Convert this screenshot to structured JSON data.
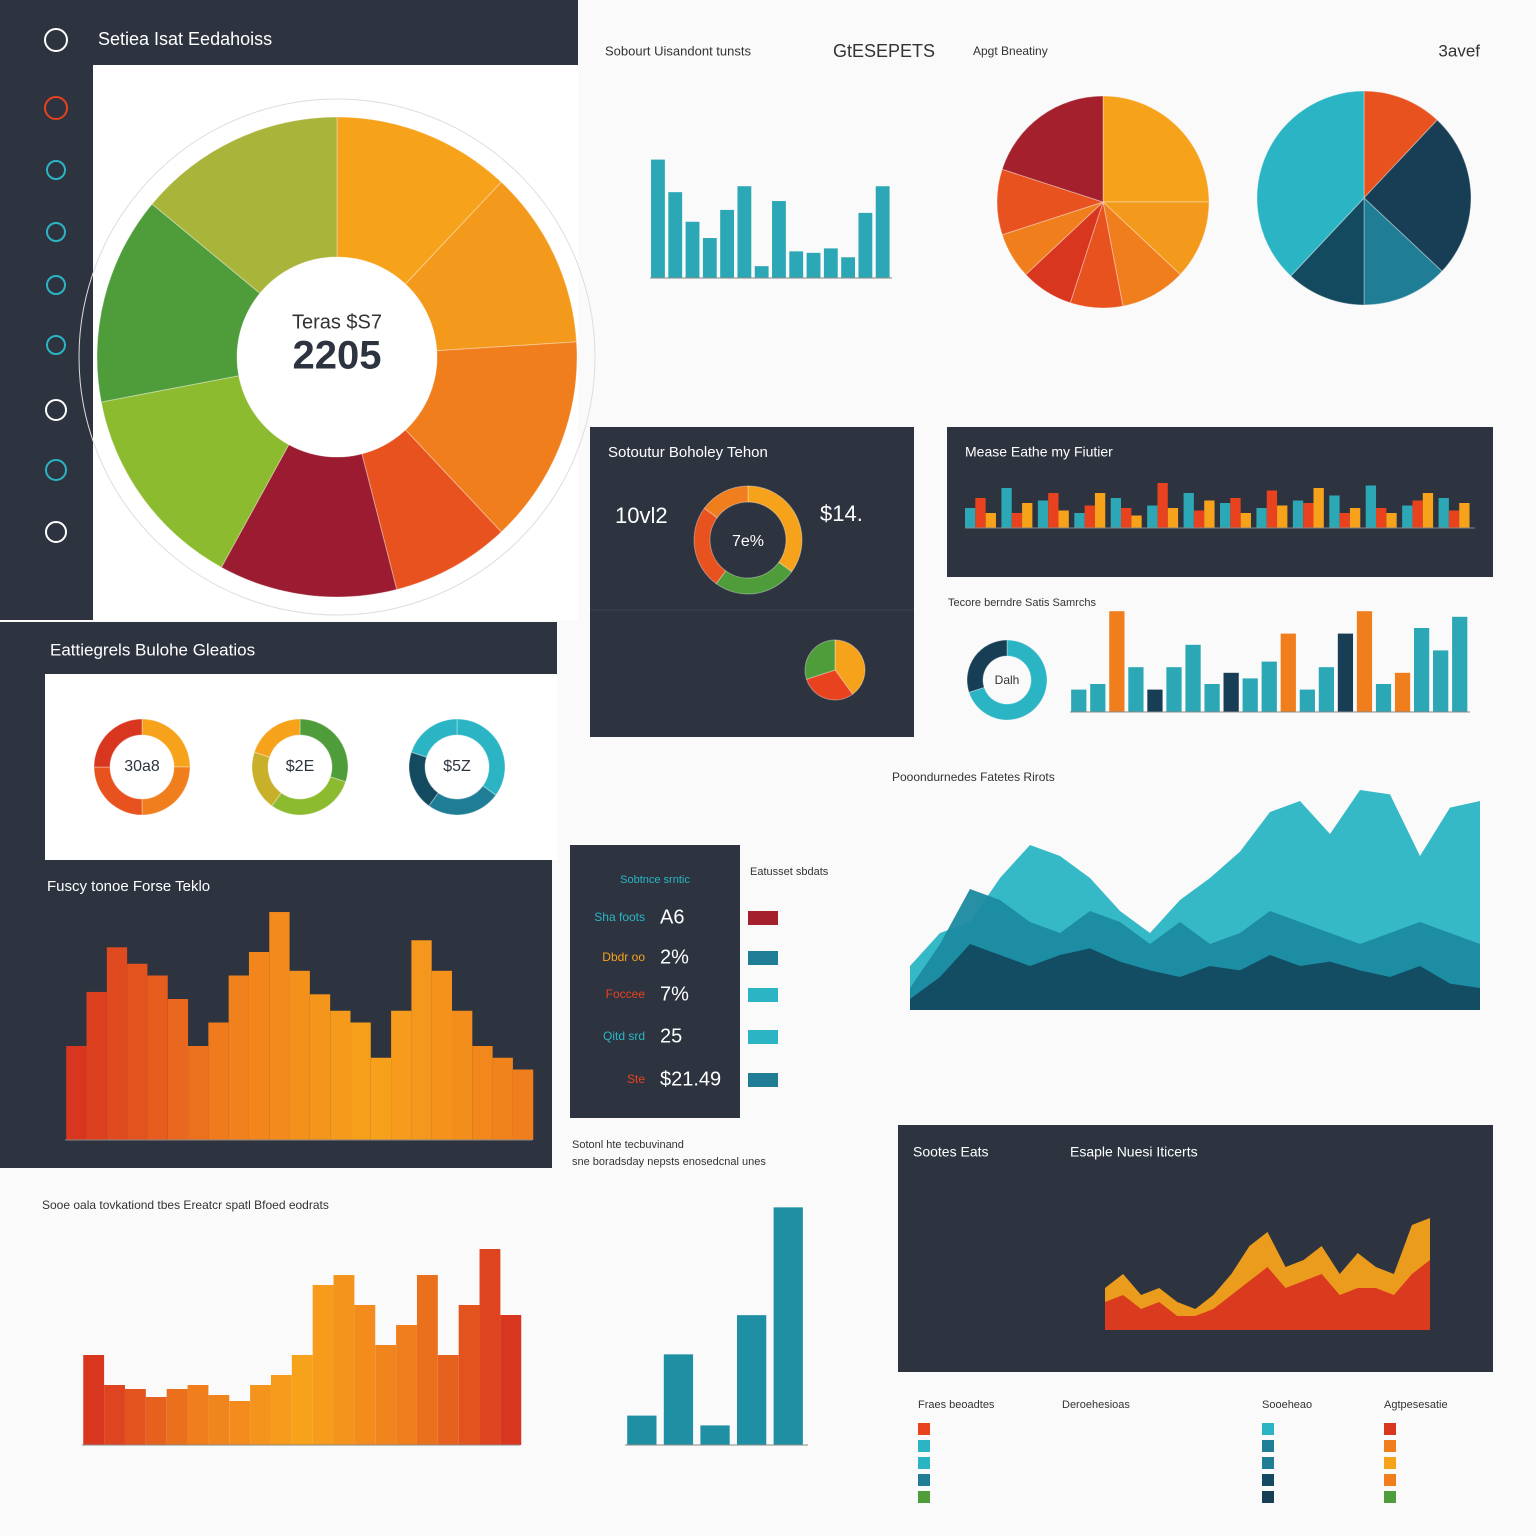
{
  "header": {
    "title": "Setiea Isat Eedahoiss"
  },
  "chart_data": [
    {
      "type": "donut",
      "center_label": "Teras $S7",
      "center_value": "2205",
      "values": [
        12,
        12,
        14,
        8,
        12,
        14,
        14,
        14
      ],
      "colors": [
        "#f7a21b",
        "#f39a1c",
        "#f07e1d",
        "#e8521f",
        "#9b1b30",
        "#8dbb2f",
        "#4f9d3a",
        "#a9b53a"
      ]
    },
    {
      "type": "bar",
      "title": "Sobourt Uisandont tunsts",
      "badge": "GtESEPETS",
      "color": "#2ba7b5",
      "values": [
        80,
        58,
        38,
        27,
        46,
        62,
        8,
        52,
        18,
        17,
        20,
        14,
        44,
        62
      ],
      "ylim": [
        0,
        100
      ]
    },
    {
      "type": "pie",
      "title": "Apgt Bneatiny",
      "values": [
        25,
        12,
        10,
        8,
        8,
        7,
        10,
        20
      ],
      "colors": [
        "#f7a21b",
        "#f39a1c",
        "#f07e1d",
        "#e8521f",
        "#d9361f",
        "#f07e1d",
        "#e8521f",
        "#a3202c"
      ]
    },
    {
      "type": "pie",
      "title": "3avef",
      "values": [
        12,
        25,
        13,
        12,
        38
      ],
      "colors": [
        "#e8521f",
        "#173e55",
        "#1f7e96",
        "#134a60",
        "#2bb5c4"
      ]
    },
    {
      "type": "donut",
      "title": "Sotoutur Boholey Tehon",
      "left_value": "10vl2",
      "center_value": "7e%",
      "right_value": "$14.",
      "values": [
        35,
        25,
        25,
        15
      ],
      "colors": [
        "#f7a21b",
        "#4f9d3a",
        "#e8521f",
        "#f07e1d"
      ]
    },
    {
      "type": "bar",
      "title": "Mease Eathe my Fiutier",
      "ylim": [
        0,
        100
      ],
      "series": [
        {
          "color": "#2ba7b5",
          "values": [
            40,
            80,
            55,
            30,
            60,
            45,
            70,
            50,
            40,
            55,
            65,
            85,
            45,
            60
          ]
        },
        {
          "color": "#e8421f",
          "values": [
            60,
            30,
            70,
            45,
            40,
            90,
            35,
            60,
            75,
            50,
            30,
            40,
            55,
            35
          ]
        },
        {
          "color": "#f7a21b",
          "values": [
            30,
            50,
            35,
            70,
            25,
            40,
            55,
            30,
            45,
            80,
            40,
            30,
            70,
            50
          ]
        }
      ]
    },
    {
      "type": "donut",
      "center_value": "Dalh",
      "values": [
        70,
        30
      ],
      "colors": [
        "#2bb5c4",
        "#173e55"
      ]
    },
    {
      "type": "bar",
      "title": "Tecore berndre Satis Samrchs",
      "ylim": [
        0,
        100
      ],
      "values": [
        20,
        25,
        90,
        40,
        20,
        40,
        60,
        25,
        35,
        30,
        45,
        70,
        20,
        40,
        70,
        90,
        25,
        35,
        75,
        55,
        85
      ],
      "colors": [
        "#2ba7b5",
        "#2ba7b5",
        "#f07e1d",
        "#2ba7b5",
        "#173e55",
        "#2ba7b5",
        "#2ba7b5",
        "#2ba7b5",
        "#173e55",
        "#2ba7b5",
        "#2ba7b5",
        "#f07e1d",
        "#2ba7b5",
        "#2ba7b5",
        "#173e55",
        "#f07e1d",
        "#2ba7b5",
        "#f07e1d",
        "#2ba7b5",
        "#2ba7b5",
        "#2ba7b5"
      ]
    },
    {
      "type": "gauge",
      "title": "Eattiegrels Bulohe Gleatios",
      "items": [
        {
          "label": "30a8",
          "values": [
            25,
            25,
            25,
            25
          ],
          "colors": [
            "#f7a21b",
            "#f07e1d",
            "#e8521f",
            "#d9361f"
          ]
        },
        {
          "label": "$2E",
          "values": [
            30,
            30,
            20,
            20
          ],
          "colors": [
            "#4f9d3a",
            "#8dbb2f",
            "#c9b02a",
            "#f7a21b"
          ]
        },
        {
          "label": "$5Z",
          "values": [
            35,
            25,
            20,
            20
          ],
          "colors": [
            "#2bb5c4",
            "#1f7e96",
            "#134a60",
            "#2bb5c4"
          ]
        }
      ]
    },
    {
      "type": "bar",
      "title": "Fuscy tonoe Forse Teklo",
      "ylim": [
        0,
        100
      ],
      "values": [
        40,
        63,
        82,
        75,
        70,
        60,
        40,
        50,
        70,
        80,
        97,
        72,
        62,
        55,
        50,
        35,
        55,
        85,
        72,
        55,
        40,
        35,
        30
      ],
      "gradient": [
        "#d9361f",
        "#f07e1d",
        "#f7a21b",
        "#f07e1d"
      ]
    },
    {
      "type": "kpi",
      "title": "Sobtnce srntic",
      "side_title": "Eatusset sbdats",
      "rows": [
        {
          "label": "Sha foots",
          "value": "A6",
          "color": "#2bb5c4",
          "tag_color": "#a3202c"
        },
        {
          "label": "Dbdr oo",
          "value": "2%",
          "color": "#f7a21b",
          "tag_color": "#1f7e96"
        },
        {
          "label": "Foccee",
          "value": "7%",
          "color": "#e8421f",
          "tag_color": "#2bb5c4"
        },
        {
          "label": "Qitd srd",
          "value": "25",
          "color": "#2bb5c4",
          "tag_color": "#2bb5c4"
        },
        {
          "label": "Ste",
          "value": "$21.49",
          "color": "#e8421f",
          "tag_color": "#1f7e96"
        }
      ]
    },
    {
      "type": "area",
      "title": "Pooondurnedes Fatetes Rirots",
      "ylim": [
        0,
        100
      ],
      "series": [
        {
          "color": "#2bb5c4",
          "values": [
            20,
            35,
            40,
            60,
            75,
            70,
            60,
            45,
            35,
            50,
            60,
            72,
            90,
            95,
            80,
            100,
            98,
            70,
            92,
            95
          ]
        },
        {
          "color": "#1b8aa0",
          "values": [
            10,
            30,
            55,
            50,
            40,
            35,
            45,
            40,
            30,
            40,
            30,
            35,
            45,
            40,
            35,
            30,
            35,
            40,
            35,
            30
          ]
        },
        {
          "color": "#134a60",
          "values": [
            5,
            15,
            30,
            25,
            20,
            25,
            28,
            22,
            18,
            15,
            20,
            18,
            25,
            20,
            22,
            18,
            15,
            20,
            12,
            10
          ]
        }
      ]
    },
    {
      "type": "bar",
      "title": "Sooe oala tovkationd tbes Ereatcr spatl Bfoed eodrats",
      "ylim": [
        0,
        100
      ],
      "values": [
        45,
        30,
        28,
        24,
        28,
        30,
        25,
        22,
        30,
        35,
        45,
        80,
        85,
        70,
        50,
        60,
        85,
        45,
        70,
        98,
        65
      ],
      "gradient": [
        "#d9361f",
        "#f07e1d",
        "#f7a21b",
        "#f07e1d",
        "#d9361f"
      ]
    },
    {
      "type": "bar",
      "title": "Sotonl hte tecbuvinand",
      "subtitle": "sne boradsday nepsts enosedcnal unes",
      "ylim": [
        0,
        100
      ],
      "values": [
        12,
        37,
        8,
        53,
        97
      ],
      "color": "#1f8fa3"
    },
    {
      "type": "area",
      "title": "Sootes Eats",
      "subtitle": "Esaple Nuesi Iticerts",
      "ylim": [
        0,
        100
      ],
      "series": [
        {
          "color": "#f7a21b",
          "values": [
            30,
            40,
            25,
            30,
            20,
            15,
            25,
            40,
            60,
            70,
            45,
            50,
            60,
            40,
            55,
            45,
            40,
            75,
            80
          ]
        },
        {
          "color": "#d9361f",
          "values": [
            20,
            25,
            15,
            20,
            10,
            10,
            15,
            25,
            35,
            45,
            30,
            35,
            40,
            25,
            30,
            30,
            25,
            40,
            50
          ]
        }
      ]
    },
    {
      "type": "pie",
      "values": [
        40,
        30,
        30
      ],
      "colors": [
        "#f7a21b",
        "#e8421f",
        "#4f9d3a"
      ]
    }
  ],
  "legends": [
    {
      "title": "Fraes beoadtes",
      "colors": [
        "#e8421f",
        "#2bb5c4",
        "#2bb5c4",
        "#1f7e96",
        "#4f9d3a"
      ]
    },
    {
      "title": "Deroehesioas",
      "colors": []
    },
    {
      "title": "Sooeheao",
      "colors": [
        "#2bb5c4",
        "#1f7e96",
        "#1f7e96",
        "#134a60",
        "#173e55"
      ]
    },
    {
      "title": "Agtpesesatie",
      "colors": [
        "#d9361f",
        "#f07e1d",
        "#f7a21b",
        "#f07e1d",
        "#4f9d3a"
      ]
    }
  ]
}
